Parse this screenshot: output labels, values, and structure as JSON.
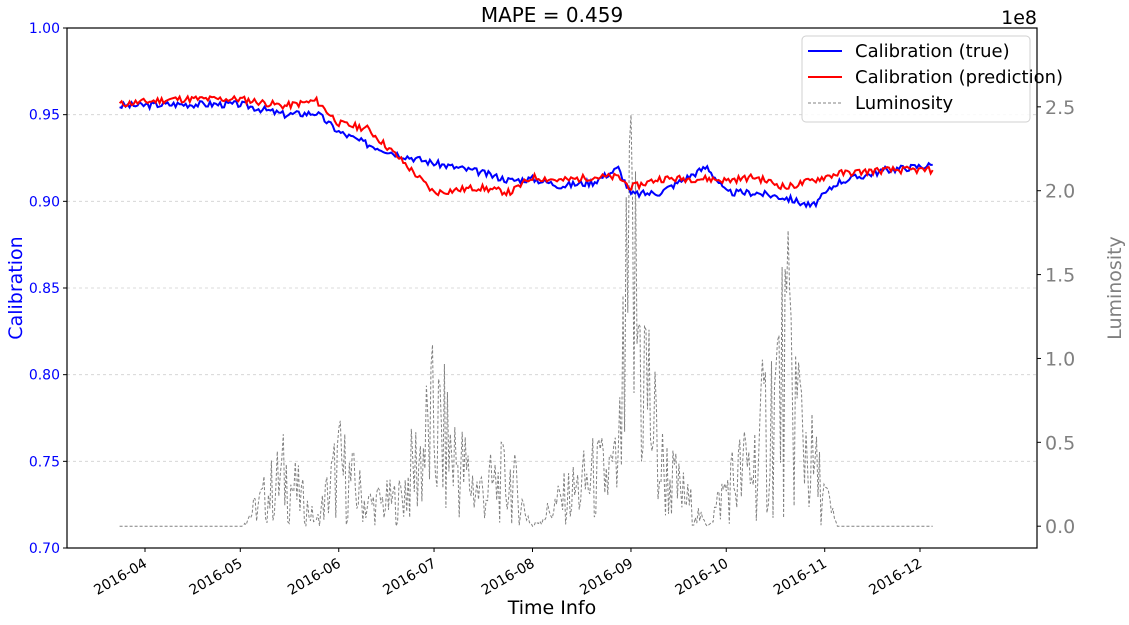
{
  "chart_data": {
    "type": "line",
    "title": "MAPE = 0.459",
    "xlabel": "Time Info",
    "ylabel": "Calibration",
    "y2label": "Luminosity",
    "y2_offset_label": "1e8",
    "ylim": [
      0.7,
      1.0
    ],
    "y2lim": [
      -0.13,
      2.97
    ],
    "y_ticks": [
      "0.70",
      "0.75",
      "0.80",
      "0.85",
      "0.90",
      "0.95",
      "1.00"
    ],
    "y2_ticks": [
      "0.0",
      "0.5",
      "1.0",
      "1.5",
      "2.0",
      "2.5"
    ],
    "x_ticks": [
      "2016-04",
      "2016-05",
      "2016-06",
      "2016-07",
      "2016-08",
      "2016-09",
      "2016-10",
      "2016-11",
      "2016-12"
    ],
    "grid": "horizontal dashed (left axis)",
    "legend_position": "upper right",
    "colors": {
      "true": "#0000ff",
      "prediction": "#ff0000",
      "luminosity": "#808080"
    },
    "x_dates": [
      "2016-03-24",
      "2016-04-10",
      "2016-05-01",
      "2016-05-15",
      "2016-05-25",
      "2016-06-01",
      "2016-06-10",
      "2016-06-20",
      "2016-07-01",
      "2016-07-15",
      "2016-07-25",
      "2016-08-01",
      "2016-08-10",
      "2016-08-20",
      "2016-08-28",
      "2016-09-01",
      "2016-09-10",
      "2016-09-25",
      "2016-10-01",
      "2016-10-10",
      "2016-10-20",
      "2016-10-28",
      "2016-11-05",
      "2016-11-20",
      "2016-12-05"
    ],
    "series": [
      {
        "name": "Calibration (true)",
        "axis": "left",
        "values": [
          0.955,
          0.956,
          0.956,
          0.95,
          0.951,
          0.94,
          0.933,
          0.927,
          0.922,
          0.917,
          0.912,
          0.913,
          0.909,
          0.911,
          0.919,
          0.904,
          0.905,
          0.92,
          0.905,
          0.905,
          0.902,
          0.897,
          0.911,
          0.918,
          0.921
        ]
      },
      {
        "name": "Calibration (prediction)",
        "axis": "left",
        "values": [
          0.956,
          0.959,
          0.959,
          0.955,
          0.958,
          0.945,
          0.942,
          0.925,
          0.905,
          0.908,
          0.905,
          0.914,
          0.912,
          0.914,
          0.914,
          0.908,
          0.913,
          0.913,
          0.912,
          0.914,
          0.908,
          0.912,
          0.916,
          0.918,
          0.918
        ]
      },
      {
        "name": "Luminosity",
        "axis": "right",
        "style": "dashed",
        "values": [
          0.0,
          0.0,
          0.0,
          0.6,
          0.05,
          0.7,
          0.25,
          0.3,
          1.15,
          0.4,
          0.55,
          0.0,
          0.3,
          0.55,
          0.6,
          2.85,
          0.7,
          0.0,
          0.45,
          0.75,
          1.85,
          0.7,
          0.0,
          0.0,
          0.0
        ]
      }
    ]
  },
  "legend": {
    "items": [
      {
        "label": "Calibration (true)"
      },
      {
        "label": "Calibration (prediction)"
      },
      {
        "label": "Luminosity"
      }
    ]
  }
}
